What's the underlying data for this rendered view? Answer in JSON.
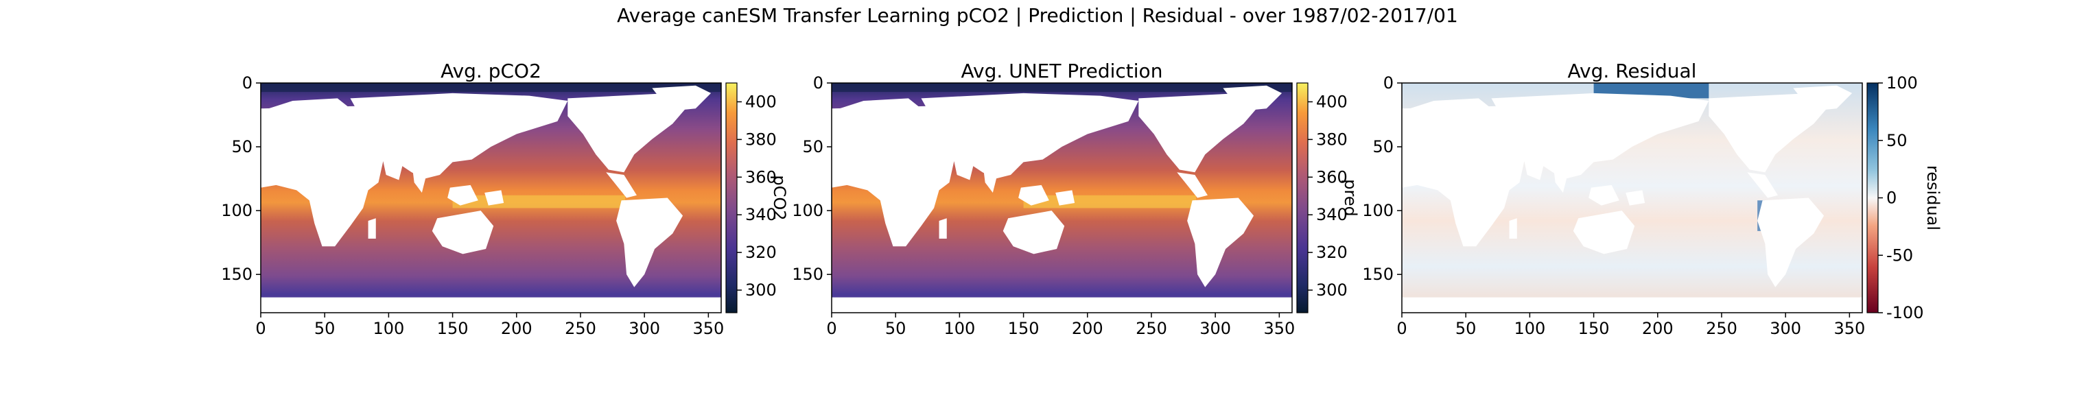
{
  "figure": {
    "suptitle": "Average canESM Transfer Learning pCO2 | Prediction | Residual - over 1987/02-2017/01"
  },
  "chart_data": [
    {
      "type": "heatmap",
      "title": "Avg. pCO2",
      "x_range": [
        0,
        360
      ],
      "y_range": [
        0,
        180
      ],
      "y_inverted": true,
      "x_ticks": [
        0,
        50,
        100,
        150,
        200,
        250,
        300,
        350
      ],
      "y_ticks": [
        0,
        50,
        100,
        150
      ],
      "colormap": "thermal (dark navy to purple to orange to yellow)",
      "colorbar": {
        "label": "pCO2",
        "range": [
          288,
          410
        ],
        "ticks": [
          300,
          320,
          340,
          360,
          380,
          400
        ]
      },
      "grid": false
    },
    {
      "type": "heatmap",
      "title": "Avg. UNET Prediction",
      "x_range": [
        0,
        360
      ],
      "y_range": [
        0,
        180
      ],
      "y_inverted": true,
      "x_ticks": [
        0,
        50,
        100,
        150,
        200,
        250,
        300,
        350
      ],
      "y_ticks": [
        0,
        50,
        100,
        150
      ],
      "colormap": "thermal (dark navy to purple to orange to yellow)",
      "colorbar": {
        "label": "pred",
        "range": [
          288,
          410
        ],
        "ticks": [
          300,
          320,
          340,
          360,
          380,
          400
        ]
      },
      "grid": false
    },
    {
      "type": "heatmap",
      "title": "Avg. Residual",
      "x_range": [
        0,
        360
      ],
      "y_range": [
        0,
        180
      ],
      "y_inverted": true,
      "x_ticks": [
        0,
        50,
        100,
        150,
        200,
        250,
        300,
        350
      ],
      "y_ticks": [
        0,
        50,
        100,
        150
      ],
      "colormap": "diverging RdBu (red negative, white zero, blue positive)",
      "colorbar": {
        "label": "residual",
        "range": [
          -100,
          100
        ],
        "ticks": [
          -100,
          -50,
          0,
          50,
          100
        ]
      },
      "grid": false
    }
  ]
}
